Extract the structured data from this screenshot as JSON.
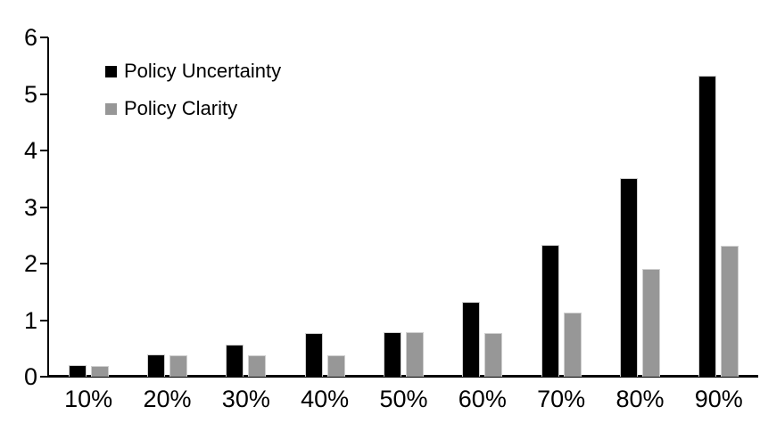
{
  "chart_data": {
    "type": "bar",
    "title": "",
    "categories": [
      "10%",
      "20%",
      "30%",
      "40%",
      "50%",
      "60%",
      "70%",
      "80%",
      "90%"
    ],
    "series": [
      {
        "name": "Policy Uncertainty",
        "color": "#000000",
        "values": [
          0.2,
          0.4,
          0.57,
          0.77,
          0.78,
          1.33,
          2.33,
          3.51,
          5.33
        ]
      },
      {
        "name": "Policy Clarity",
        "color": "#979797",
        "values": [
          0.19,
          0.38,
          0.38,
          0.38,
          0.78,
          0.77,
          1.14,
          1.9,
          2.31
        ]
      }
    ],
    "xlabel": "",
    "ylabel": "",
    "ylim": [
      0,
      6
    ],
    "yticks": [
      0,
      1,
      2,
      3,
      4,
      5,
      6
    ],
    "grid": false,
    "legend_position": "top-left",
    "background_color": "#ffffff",
    "axis_color": "#000000"
  }
}
